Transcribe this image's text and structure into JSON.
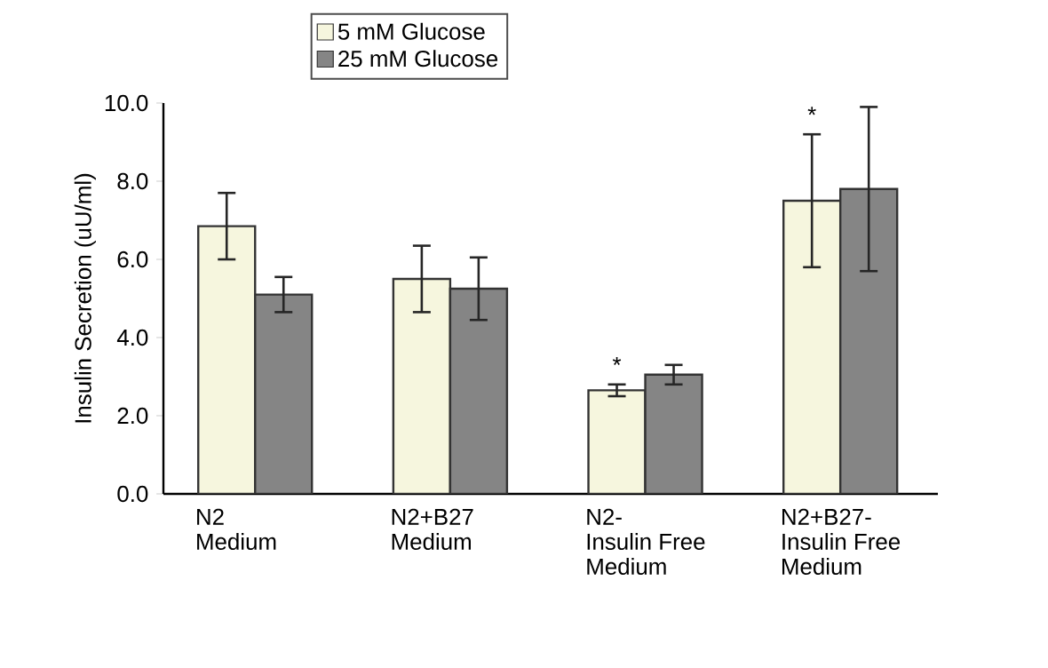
{
  "chart_data": {
    "type": "bar",
    "ylabel": "Insulin Secretion (uU/ml)",
    "categories": [
      "N2\nMedium",
      "N2+B27\nMedium",
      "N2-\nInsulin Free\nMedium",
      "N2+B27-\nInsulin Free\nMedium"
    ],
    "series": [
      {
        "name": "5 mM Glucose",
        "color": "#f6f6de",
        "values": [
          6.85,
          5.5,
          2.65,
          7.5
        ],
        "errors": [
          0.85,
          0.85,
          0.15,
          1.7
        ]
      },
      {
        "name": "25 mM Glucose",
        "color": "#858585",
        "values": [
          5.1,
          5.25,
          3.05,
          7.8
        ],
        "errors": [
          0.45,
          0.8,
          0.25,
          2.1
        ]
      }
    ],
    "ylim": [
      0,
      10
    ],
    "yticks": [
      {
        "value": 0,
        "label": "0.0"
      },
      {
        "value": 2,
        "label": "2.0"
      },
      {
        "value": 4,
        "label": "4.0"
      },
      {
        "value": 6,
        "label": "6.0"
      },
      {
        "value": 8,
        "label": "8.0"
      },
      {
        "value": 10,
        "label": "10.0"
      }
    ],
    "annotations": [
      "*",
      "*"
    ],
    "legend": "top",
    "grid": false
  }
}
